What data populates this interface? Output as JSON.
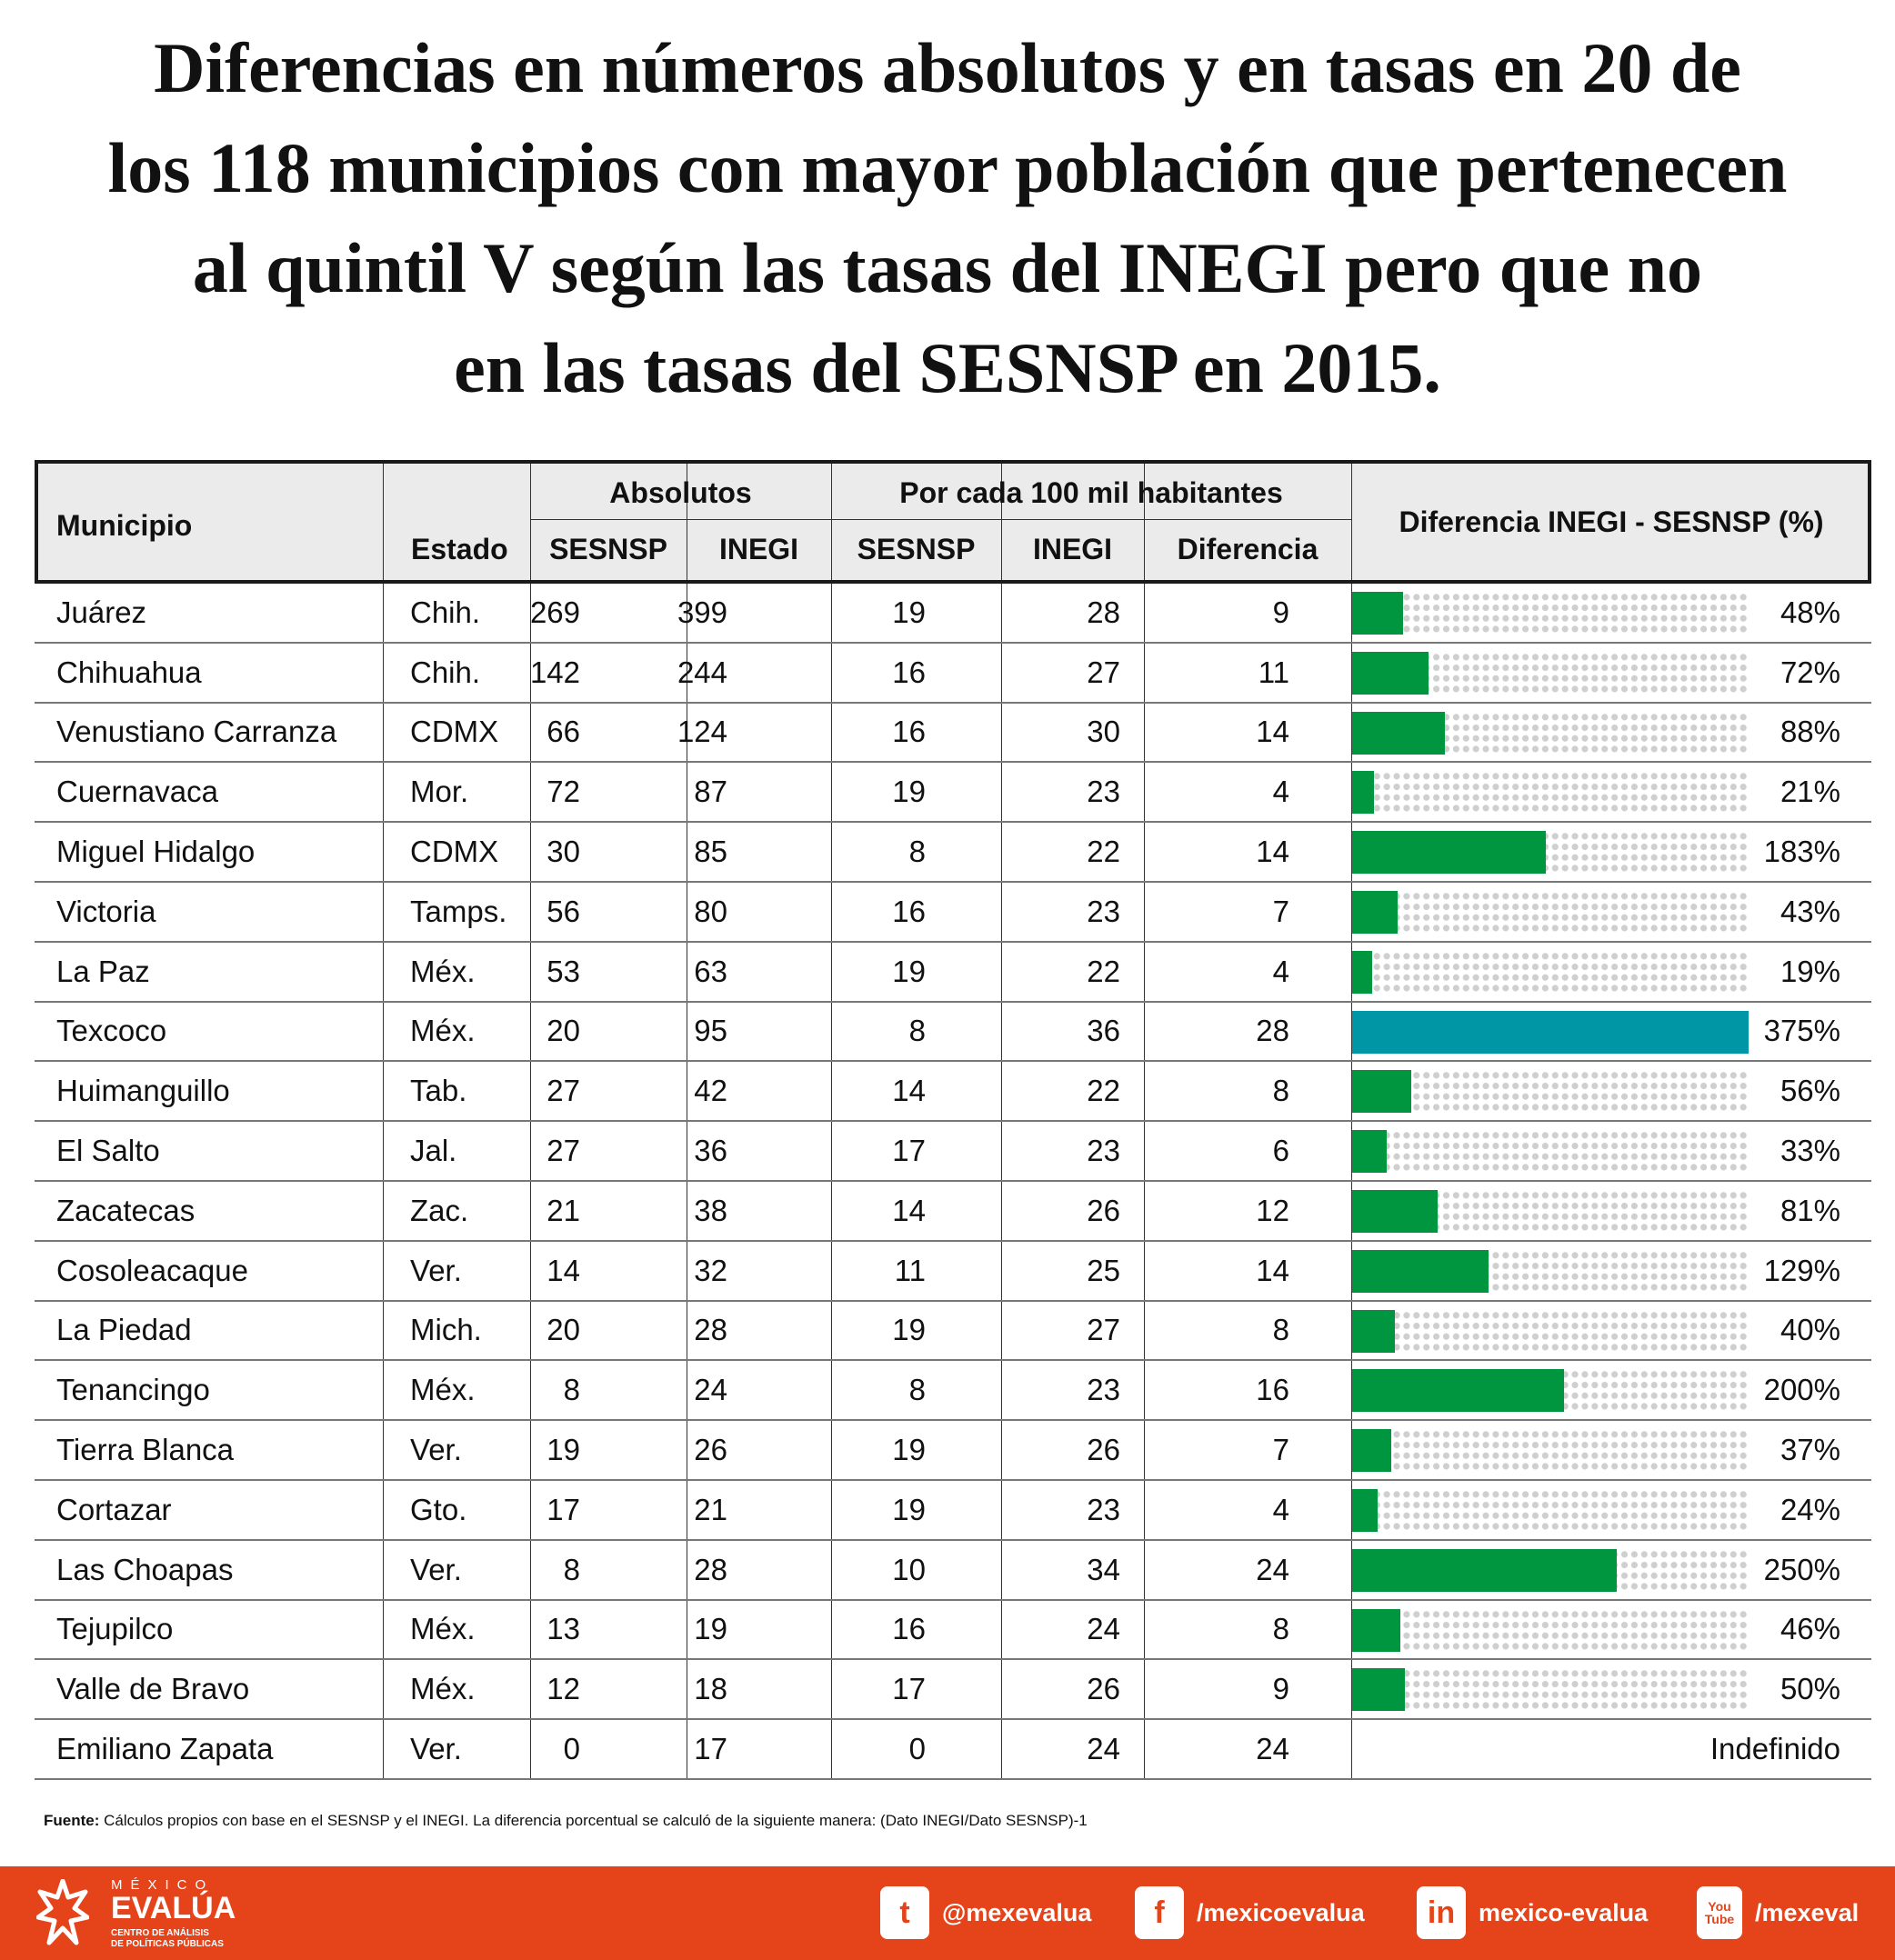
{
  "title": {
    "lines": [
      "Diferencias en números absolutos y en tasas en 20 de",
      "los 118 municipios con mayor población que pertenecen",
      "al quintil V según las tasas del INEGI pero que no",
      "en las tasas del SESNSP en 2015."
    ]
  },
  "table": {
    "headers": {
      "municipio": "Municipio",
      "estado": "Estado",
      "absolutos": "Absolutos",
      "por_cada": "Por cada 100 mil habitantes",
      "sesnsp": "SESNSP",
      "inegi": "INEGI",
      "sesnsp2": "SESNSP",
      "inegi2": "INEGI",
      "diferencia": "Diferencia",
      "diferencia_pct": "Diferencia INEGI - SESNSP (%)"
    },
    "bar_scale_max_pct": 375,
    "colors": {
      "bar": "#009640",
      "bar_max": "#0096a6",
      "track_dots": "#cfcfcf",
      "header_bg": "#ebebeb"
    },
    "rows": [
      {
        "municipio": "Juárez",
        "estado": "Chih.",
        "abs_sesnsp": "269",
        "abs_inegi": "399",
        "tasa_sesnsp": "19",
        "tasa_inegi": "28",
        "diferencia": "9",
        "pct": 48,
        "pct_label": "48%"
      },
      {
        "municipio": "Chihuahua",
        "estado": "Chih.",
        "abs_sesnsp": "142",
        "abs_inegi": "244",
        "tasa_sesnsp": "16",
        "tasa_inegi": "27",
        "diferencia": "11",
        "pct": 72,
        "pct_label": "72%"
      },
      {
        "municipio": "Venustiano Carranza",
        "estado": "CDMX",
        "abs_sesnsp": "66",
        "abs_inegi": "124",
        "tasa_sesnsp": "16",
        "tasa_inegi": "30",
        "diferencia": "14",
        "pct": 88,
        "pct_label": "88%"
      },
      {
        "municipio": "Cuernavaca",
        "estado": "Mor.",
        "abs_sesnsp": "72",
        "abs_inegi": "87",
        "tasa_sesnsp": "19",
        "tasa_inegi": "23",
        "diferencia": "4",
        "pct": 21,
        "pct_label": "21%"
      },
      {
        "municipio": "Miguel Hidalgo",
        "estado": "CDMX",
        "abs_sesnsp": "30",
        "abs_inegi": "85",
        "tasa_sesnsp": "8",
        "tasa_inegi": "22",
        "diferencia": "14",
        "pct": 183,
        "pct_label": "183%"
      },
      {
        "municipio": "Victoria",
        "estado": "Tamps.",
        "abs_sesnsp": "56",
        "abs_inegi": "80",
        "tasa_sesnsp": "16",
        "tasa_inegi": "23",
        "diferencia": "7",
        "pct": 43,
        "pct_label": "43%"
      },
      {
        "municipio": "La Paz",
        "estado": "Méx.",
        "abs_sesnsp": "53",
        "abs_inegi": "63",
        "tasa_sesnsp": "19",
        "tasa_inegi": "22",
        "diferencia": "4",
        "pct": 19,
        "pct_label": "19%"
      },
      {
        "municipio": "Texcoco",
        "estado": "Méx.",
        "abs_sesnsp": "20",
        "abs_inegi": "95",
        "tasa_sesnsp": "8",
        "tasa_inegi": "36",
        "diferencia": "28",
        "pct": 375,
        "pct_label": "375%",
        "highlight": true
      },
      {
        "municipio": "Huimanguillo",
        "estado": "Tab.",
        "abs_sesnsp": "27",
        "abs_inegi": "42",
        "tasa_sesnsp": "14",
        "tasa_inegi": "22",
        "diferencia": "8",
        "pct": 56,
        "pct_label": "56%"
      },
      {
        "municipio": "El Salto",
        "estado": "Jal.",
        "abs_sesnsp": "27",
        "abs_inegi": "36",
        "tasa_sesnsp": "17",
        "tasa_inegi": "23",
        "diferencia": "6",
        "pct": 33,
        "pct_label": "33%"
      },
      {
        "municipio": "Zacatecas",
        "estado": "Zac.",
        "abs_sesnsp": "21",
        "abs_inegi": "38",
        "tasa_sesnsp": "14",
        "tasa_inegi": "26",
        "diferencia": "12",
        "pct": 81,
        "pct_label": "81%"
      },
      {
        "municipio": "Cosoleacaque",
        "estado": "Ver.",
        "abs_sesnsp": "14",
        "abs_inegi": "32",
        "tasa_sesnsp": "11",
        "tasa_inegi": "25",
        "diferencia": "14",
        "pct": 129,
        "pct_label": "129%"
      },
      {
        "municipio": "La Piedad",
        "estado": "Mich.",
        "abs_sesnsp": "20",
        "abs_inegi": "28",
        "tasa_sesnsp": "19",
        "tasa_inegi": "27",
        "diferencia": "8",
        "pct": 40,
        "pct_label": "40%"
      },
      {
        "municipio": "Tenancingo",
        "estado": "Méx.",
        "abs_sesnsp": "8",
        "abs_inegi": "24",
        "tasa_sesnsp": "8",
        "tasa_inegi": "23",
        "diferencia": "16",
        "pct": 200,
        "pct_label": "200%"
      },
      {
        "municipio": "Tierra Blanca",
        "estado": "Ver.",
        "abs_sesnsp": "19",
        "abs_inegi": "26",
        "tasa_sesnsp": "19",
        "tasa_inegi": "26",
        "diferencia": "7",
        "pct": 37,
        "pct_label": "37%"
      },
      {
        "municipio": "Cortazar",
        "estado": "Gto.",
        "abs_sesnsp": "17",
        "abs_inegi": "21",
        "tasa_sesnsp": "19",
        "tasa_inegi": "23",
        "diferencia": "4",
        "pct": 24,
        "pct_label": "24%"
      },
      {
        "municipio": "Las Choapas",
        "estado": "Ver.",
        "abs_sesnsp": "8",
        "abs_inegi": "28",
        "tasa_sesnsp": "10",
        "tasa_inegi": "34",
        "diferencia": "24",
        "pct": 250,
        "pct_label": "250%"
      },
      {
        "municipio": "Tejupilco",
        "estado": "Méx.",
        "abs_sesnsp": "13",
        "abs_inegi": "19",
        "tasa_sesnsp": "16",
        "tasa_inegi": "24",
        "diferencia": "8",
        "pct": 46,
        "pct_label": "46%"
      },
      {
        "municipio": "Valle de Bravo",
        "estado": "Méx.",
        "abs_sesnsp": "12",
        "abs_inegi": "18",
        "tasa_sesnsp": "17",
        "tasa_inegi": "26",
        "diferencia": "9",
        "pct": 50,
        "pct_label": "50%"
      },
      {
        "municipio": "Emiliano Zapata",
        "estado": "Ver.",
        "abs_sesnsp": "0",
        "abs_inegi": "17",
        "tasa_sesnsp": "0",
        "tasa_inegi": "24",
        "diferencia": "24",
        "pct": null,
        "pct_label": "Indefinido"
      }
    ]
  },
  "source": {
    "label": "Fuente:",
    "text": " Cálculos propios con base en el SESNSP y el INEGI. La diferencia porcentual se calculó de la siguiente manera: (Dato INEGI/Dato SESNSP)-1"
  },
  "footer": {
    "brand_color": "#e5431a",
    "logo": {
      "line1": "MÉXICO",
      "line2": "EVALÚA",
      "line3": "CENTRO DE ANÁLISIS",
      "line4": "DE POLÍTICAS PÚBLICAS"
    },
    "social": [
      {
        "icon": "twitter-icon",
        "glyph": "t",
        "label": "@mexevalua"
      },
      {
        "icon": "facebook-icon",
        "glyph": "f",
        "label": "/mexicoevalua"
      },
      {
        "icon": "linkedin-icon",
        "glyph": "in",
        "label": "mexico-evalua"
      },
      {
        "icon": "youtube-icon",
        "glyph": "You Tube",
        "label": "/mexeval"
      }
    ]
  }
}
